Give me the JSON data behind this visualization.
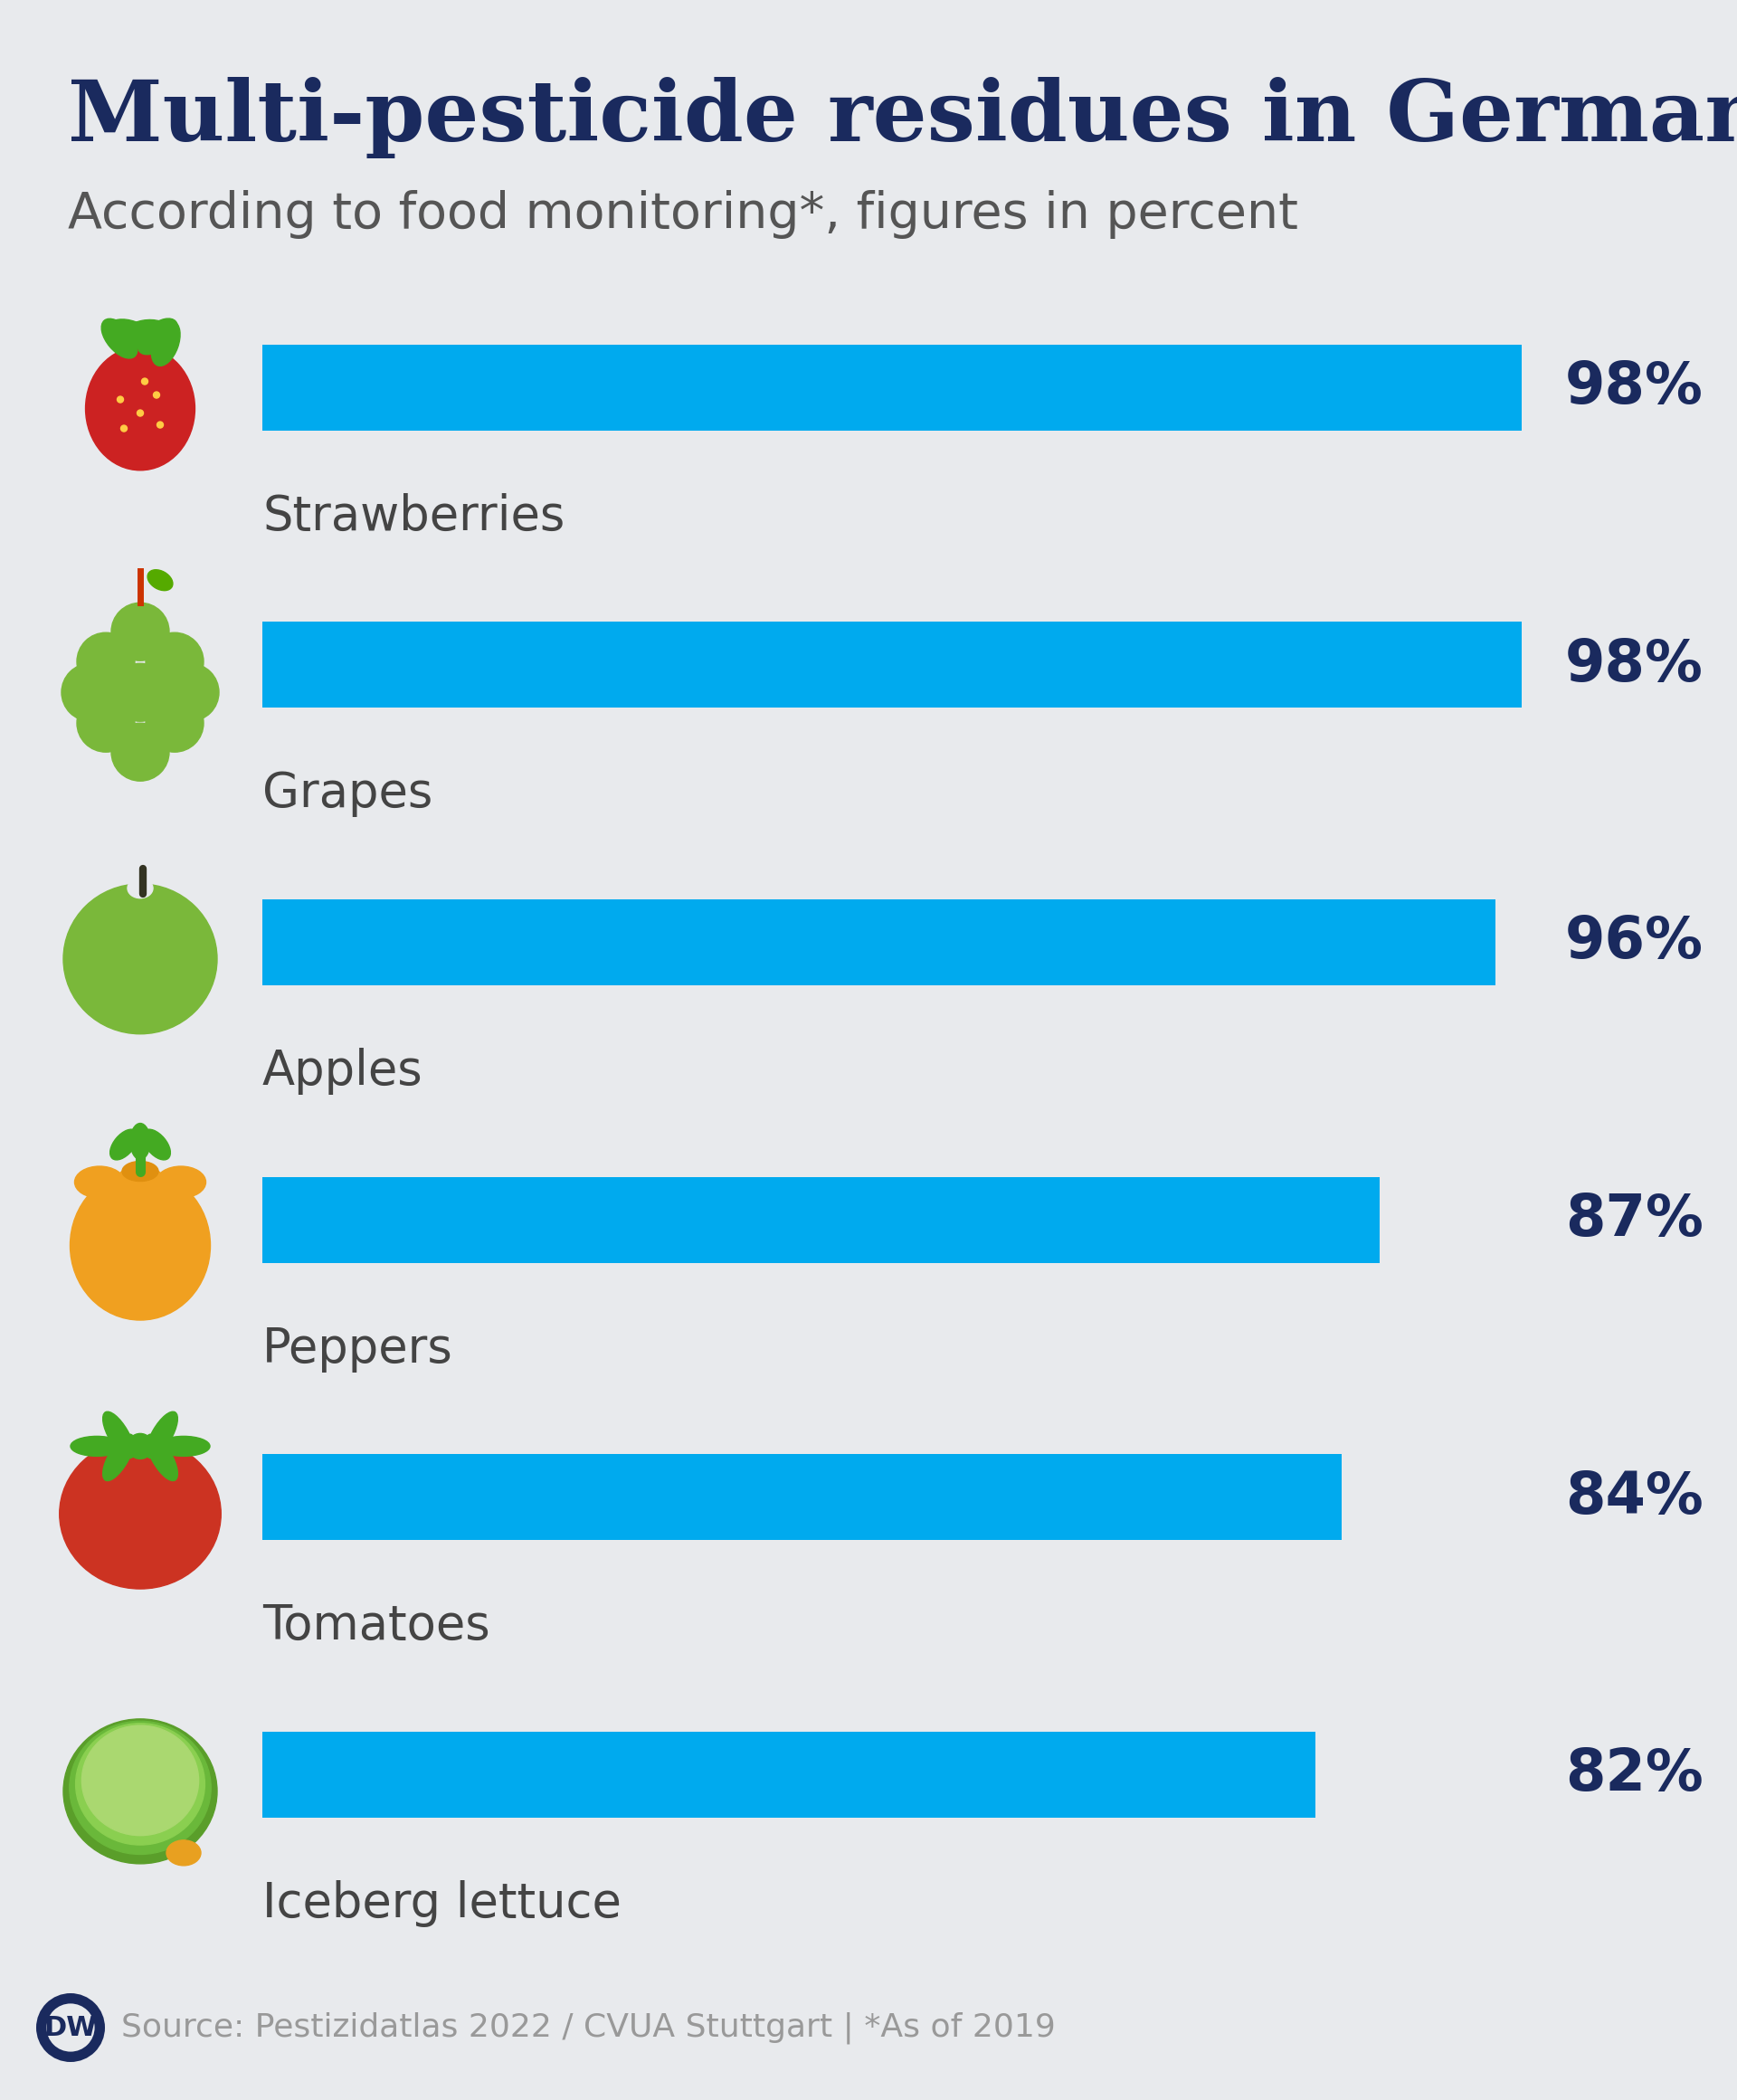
{
  "title": "Multi-pesticide residues in Germany",
  "subtitle": "According to food monitoring*, figures in percent",
  "source": "Source: Pestizidatlas 2022 / CVUA Stuttgart | *As of 2019",
  "background_color": "#e8eaed",
  "bar_color": "#00aaee",
  "title_color": "#1a2a5e",
  "subtitle_color": "#555555",
  "label_color": "#444444",
  "pct_color": "#1a2a5e",
  "source_color": "#999999",
  "items": [
    {
      "label": "Strawberries",
      "value": 98
    },
    {
      "label": "Grapes",
      "value": 98
    },
    {
      "label": "Apples",
      "value": 96
    },
    {
      "label": "Peppers",
      "value": 87
    },
    {
      "label": "Tomatoes",
      "value": 84
    },
    {
      "label": "Iceberg lettuce",
      "value": 82
    }
  ],
  "max_value": 100,
  "fig_width": 19.2,
  "fig_height": 23.21,
  "title_fontsize": 68,
  "subtitle_fontsize": 40,
  "label_fontsize": 38,
  "pct_fontsize": 46,
  "source_fontsize": 26
}
